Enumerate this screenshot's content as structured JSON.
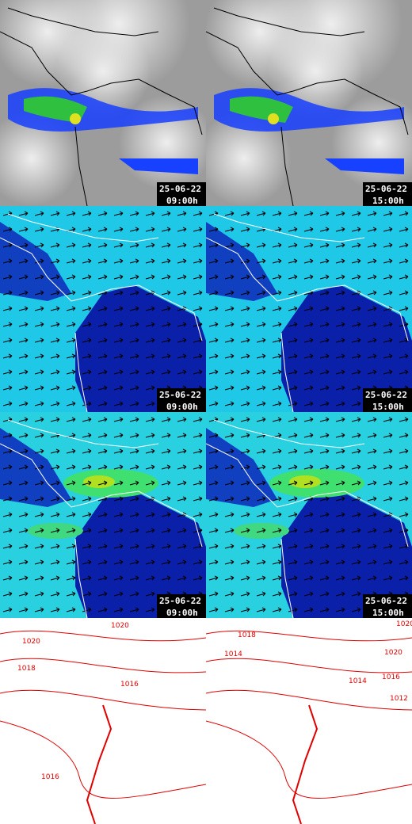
{
  "panels": [
    {
      "date": "25-06-22",
      "time": "09:00h"
    },
    {
      "date": "25-06-22",
      "time": "15:00h"
    },
    {
      "date": "25-06-22",
      "time": "09:00h"
    },
    {
      "date": "25-06-22",
      "time": "15:00h"
    },
    {
      "date": "25-06-22",
      "time": "09:00h"
    },
    {
      "date": "25-06-22",
      "time": "15:00h"
    }
  ],
  "isobar_panels": [
    {
      "labels": [
        "1020",
        "1018",
        "1020",
        "1016",
        "1016"
      ]
    },
    {
      "labels": [
        "1020",
        "1018",
        "1014",
        "1020",
        "1016",
        "1014",
        "1012"
      ]
    }
  ]
}
